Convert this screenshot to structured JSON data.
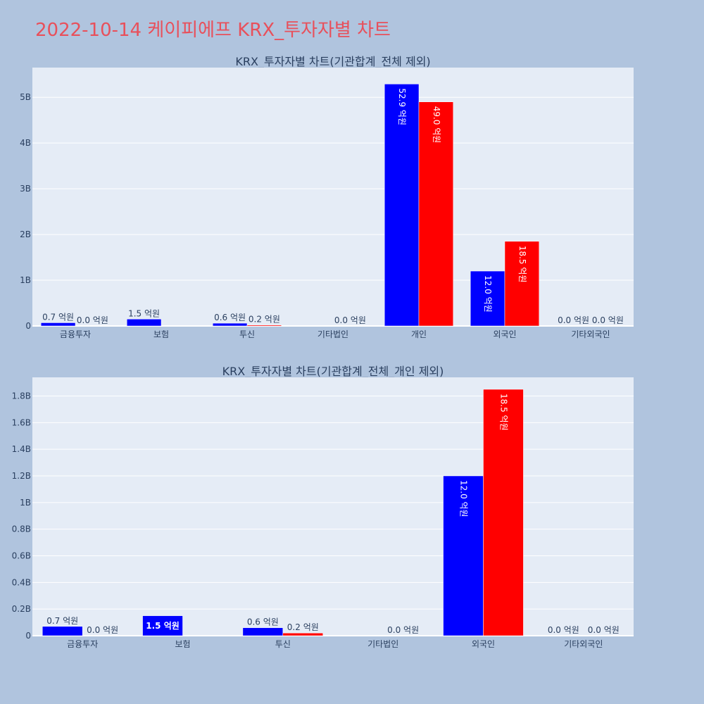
{
  "page_title": "2022-10-14 케이피에프 KRX_투자자별 차트",
  "colors": {
    "background": "#b0c4de",
    "plot_bg": "#e5ecf6",
    "grid": "#ffffff",
    "series1": "#0000ff",
    "series2": "#ff0000",
    "title": "#e8505b"
  },
  "chart_data": [
    {
      "type": "bar",
      "title": "KRX_투자자별 차트(기관합계_전체 제외)",
      "categories": [
        "금융투자",
        "보험",
        "투신",
        "기타법인",
        "개인",
        "외국인",
        "기타외국인"
      ],
      "series": [
        {
          "values": [
            70000000,
            150000000,
            60000000,
            0,
            5290000000,
            1200000000,
            0
          ],
          "labels": [
            "0.7 억원",
            "1.5 억원",
            "0.6 억원",
            "",
            "52.9 억원",
            "12.0 억원",
            "0.0 억원"
          ]
        },
        {
          "values": [
            0,
            0,
            20000000,
            0,
            4900000000,
            1850000000,
            0
          ],
          "labels": [
            "0.0 억원",
            "",
            "0.2 억원",
            "0.0 억원",
            "49.0 억원",
            "18.5 억원",
            "0.0 억원"
          ]
        }
      ],
      "yticks": [
        0,
        1000000000,
        2000000000,
        3000000000,
        4000000000,
        5000000000
      ],
      "ytick_labels": [
        "0",
        "1B",
        "2B",
        "3B",
        "4B",
        "5B"
      ],
      "ylim": [
        0,
        5650000000
      ],
      "grid": true
    },
    {
      "type": "bar",
      "title": "KRX_투자자별 차트(기관합계_전체_개인 제외)",
      "categories": [
        "금융투자",
        "보험",
        "투신",
        "기타법인",
        "외국인",
        "기타외국인"
      ],
      "series": [
        {
          "values": [
            70000000,
            150000000,
            60000000,
            0,
            1200000000,
            0
          ],
          "labels": [
            "0.7 억원",
            "1.5 억원",
            "0.6 억원",
            "",
            "12.0 억원",
            "0.0 억원"
          ]
        },
        {
          "values": [
            0,
            0,
            20000000,
            0,
            1850000000,
            0
          ],
          "labels": [
            "0.0 억원",
            "",
            "0.2 억원",
            "0.0 억원",
            "18.5 억원",
            "0.0 억원"
          ]
        }
      ],
      "yticks": [
        0,
        200000000,
        400000000,
        600000000,
        800000000,
        1000000000,
        1200000000,
        1400000000,
        1600000000,
        1800000000
      ],
      "ytick_labels": [
        "0",
        "0.2B",
        "0.4B",
        "0.6B",
        "0.8B",
        "1B",
        "1.2B",
        "1.4B",
        "1.6B",
        "1.8B"
      ],
      "ylim": [
        0,
        1940000000
      ],
      "grid": true
    }
  ]
}
